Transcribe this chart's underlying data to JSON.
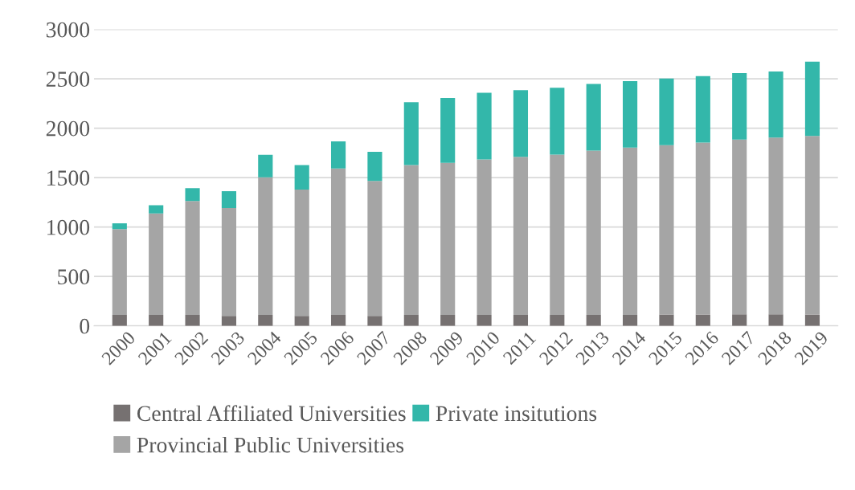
{
  "chart_data": {
    "type": "bar",
    "stacked": true,
    "categories": [
      "2000",
      "2001",
      "2002",
      "2003",
      "2004",
      "2005",
      "2006",
      "2007",
      "2008",
      "2009",
      "2010",
      "2011",
      "2012",
      "2013",
      "2014",
      "2015",
      "2016",
      "2017",
      "2018",
      "2019"
    ],
    "series": [
      {
        "name": "Central Affiliated Universities",
        "color": "#767171",
        "values": [
          110,
          110,
          110,
          100,
          110,
          100,
          110,
          100,
          110,
          110,
          110,
          110,
          110,
          110,
          110,
          115,
          115,
          118,
          118,
          115
        ]
      },
      {
        "name": "Provincial Public Universities",
        "color": "#a5a5a5",
        "values": [
          869,
          1027,
          1153,
          1093,
          1393,
          1279,
          1483,
          1366,
          1517,
          1539,
          1573,
          1601,
          1623,
          1663,
          1694,
          1714,
          1739,
          1767,
          1787,
          1807
        ]
      },
      {
        "name": "Private insitutions",
        "color": "#33b7aa",
        "values": [
          59,
          84,
          130,
          169,
          228,
          248,
          273,
          296,
          636,
          656,
          675,
          675,
          676,
          675,
          672,
          673,
          673,
          673,
          670,
          751
        ]
      }
    ],
    "ylim": [
      0,
      3000
    ],
    "yticks": [
      0,
      500,
      1000,
      1500,
      2000,
      2500,
      3000
    ],
    "grid": "y",
    "legend": "bottom"
  }
}
